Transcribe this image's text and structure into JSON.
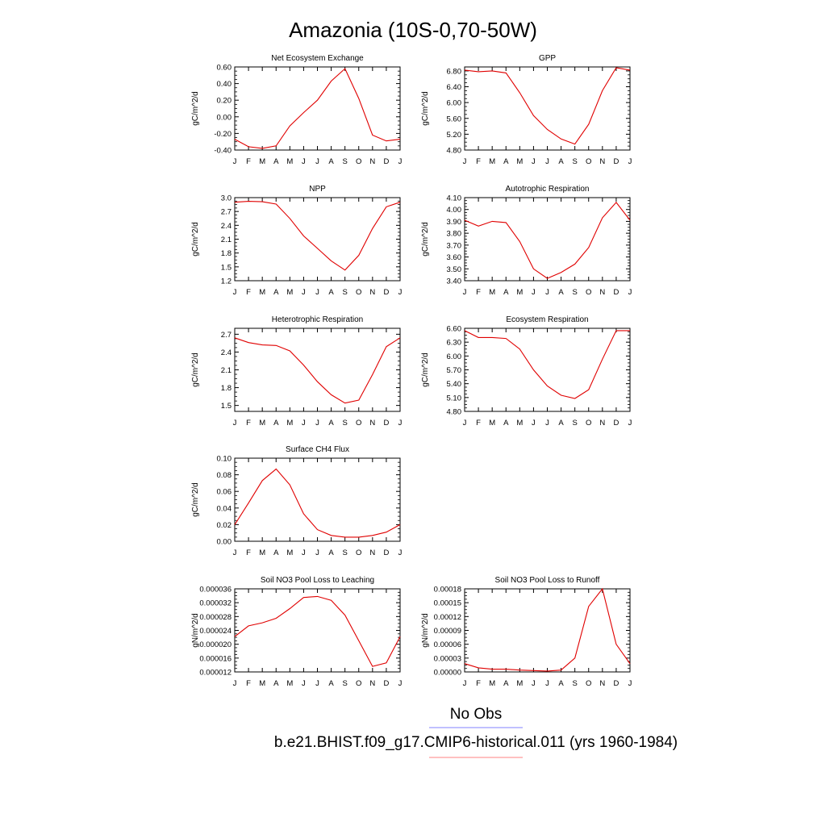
{
  "page": {
    "title": "Amazonia (10S-0,70-50W)",
    "legend": [
      {
        "label": "No Obs",
        "color": "#8080ff"
      },
      {
        "label": "b.e21.BHIST.f09_g17.CMIP6-historical.011 (yrs 1960-1984)",
        "color": "#ff8080"
      }
    ]
  },
  "chart_data": [
    {
      "type": "line",
      "title": "Net Ecosystem Exchange",
      "ylabel": "gC/m^2/d",
      "ylim": [
        -0.4,
        0.6
      ],
      "yticks": [
        "0.60",
        "0.40",
        "0.20",
        "0.00",
        "-0.20",
        "-0.40"
      ],
      "x": [
        "J",
        "F",
        "M",
        "A",
        "M",
        "J",
        "J",
        "A",
        "S",
        "O",
        "N",
        "D",
        "J"
      ],
      "series": [
        {
          "color": "#e00000",
          "values": [
            -0.27,
            -0.36,
            -0.38,
            -0.35,
            -0.11,
            0.05,
            0.2,
            0.43,
            0.58,
            0.22,
            -0.22,
            -0.29,
            -0.27
          ]
        }
      ]
    },
    {
      "type": "line",
      "title": "GPP",
      "ylabel": "gC/m^2/d",
      "ylim": [
        4.8,
        6.9
      ],
      "yticks": [
        "6.80",
        "6.40",
        "6.00",
        "5.60",
        "5.20",
        "4.80"
      ],
      "x": [
        "J",
        "F",
        "M",
        "A",
        "M",
        "J",
        "J",
        "A",
        "S",
        "O",
        "N",
        "D",
        "J"
      ],
      "series": [
        {
          "color": "#e00000",
          "values": [
            6.82,
            6.78,
            6.8,
            6.75,
            6.25,
            5.67,
            5.32,
            5.08,
            4.95,
            5.45,
            6.3,
            6.88,
            6.82
          ]
        }
      ]
    },
    {
      "type": "line",
      "title": "NPP",
      "ylabel": "gC/m^2/d",
      "ylim": [
        1.2,
        3.0
      ],
      "yticks": [
        "3.0",
        "2.7",
        "2.4",
        "2.1",
        "1.8",
        "1.5",
        "1.2"
      ],
      "x": [
        "J",
        "F",
        "M",
        "A",
        "M",
        "J",
        "J",
        "A",
        "S",
        "O",
        "N",
        "D",
        "J"
      ],
      "series": [
        {
          "color": "#e00000",
          "values": [
            2.9,
            2.92,
            2.91,
            2.86,
            2.55,
            2.17,
            1.9,
            1.63,
            1.43,
            1.75,
            2.33,
            2.8,
            2.9
          ]
        }
      ]
    },
    {
      "type": "line",
      "title": "Autotrophic Respiration",
      "ylabel": "gC/m^2/d",
      "ylim": [
        3.4,
        4.1
      ],
      "yticks": [
        "4.10",
        "4.00",
        "3.90",
        "3.80",
        "3.70",
        "3.60",
        "3.50",
        "3.40"
      ],
      "x": [
        "J",
        "F",
        "M",
        "A",
        "M",
        "J",
        "J",
        "A",
        "S",
        "O",
        "N",
        "D",
        "J"
      ],
      "series": [
        {
          "color": "#e00000",
          "values": [
            3.91,
            3.86,
            3.9,
            3.89,
            3.73,
            3.5,
            3.42,
            3.47,
            3.54,
            3.68,
            3.93,
            4.06,
            3.91
          ]
        }
      ]
    },
    {
      "type": "line",
      "title": "Heterotrophic Respiration",
      "ylabel": "gC/m^2/d",
      "ylim": [
        1.4,
        2.8
      ],
      "yticks": [
        "2.7",
        "2.4",
        "2.1",
        "1.8",
        "1.5"
      ],
      "x": [
        "J",
        "F",
        "M",
        "A",
        "M",
        "J",
        "J",
        "A",
        "S",
        "O",
        "N",
        "D",
        "J"
      ],
      "series": [
        {
          "color": "#e00000",
          "values": [
            2.64,
            2.56,
            2.52,
            2.51,
            2.42,
            2.18,
            1.9,
            1.68,
            1.54,
            1.59,
            2.02,
            2.49,
            2.64
          ]
        }
      ]
    },
    {
      "type": "line",
      "title": "Ecosystem Respiration",
      "ylabel": "gC/m^2/d",
      "ylim": [
        4.8,
        6.6
      ],
      "yticks": [
        "6.60",
        "6.30",
        "6.00",
        "5.70",
        "5.40",
        "5.10",
        "4.80"
      ],
      "x": [
        "J",
        "F",
        "M",
        "A",
        "M",
        "J",
        "J",
        "A",
        "S",
        "O",
        "N",
        "D",
        "J"
      ],
      "series": [
        {
          "color": "#e00000",
          "values": [
            6.55,
            6.4,
            6.4,
            6.38,
            6.15,
            5.7,
            5.35,
            5.15,
            5.08,
            5.27,
            5.93,
            6.55,
            6.55
          ]
        }
      ]
    },
    {
      "type": "line",
      "title": "Surface CH4 Flux",
      "ylabel": "gC/m^2/d",
      "ylim": [
        0.0,
        0.1
      ],
      "yticks": [
        "0.10",
        "0.08",
        "0.06",
        "0.04",
        "0.02",
        "0.00"
      ],
      "x": [
        "J",
        "F",
        "M",
        "A",
        "M",
        "J",
        "J",
        "A",
        "S",
        "O",
        "N",
        "D",
        "J"
      ],
      "series": [
        {
          "color": "#e00000",
          "values": [
            0.02,
            0.046,
            0.073,
            0.087,
            0.068,
            0.033,
            0.014,
            0.007,
            0.005,
            0.005,
            0.007,
            0.011,
            0.02
          ]
        }
      ]
    },
    {
      "type": "line",
      "title": "Soil NO3 Pool Loss to Leaching",
      "ylabel": "gN/m^2/d",
      "ylim": [
        1.2e-05,
        3.6e-05
      ],
      "yticks": [
        "0.000036",
        "0.000032",
        "0.000028",
        "0.000024",
        "0.000020",
        "0.000016",
        "0.000012"
      ],
      "x": [
        "J",
        "F",
        "M",
        "A",
        "M",
        "J",
        "J",
        "A",
        "S",
        "O",
        "N",
        "D",
        "J"
      ],
      "series": [
        {
          "color": "#e00000",
          "values": [
            2.22e-05,
            2.53e-05,
            2.62e-05,
            2.75e-05,
            3.03e-05,
            3.35e-05,
            3.38e-05,
            3.27e-05,
            2.84e-05,
            2.1e-05,
            1.36e-05,
            1.46e-05,
            2.22e-05
          ]
        }
      ]
    },
    {
      "type": "line",
      "title": "Soil NO3 Pool Loss to Runoff",
      "ylabel": "gN/m^2/d",
      "ylim": [
        0.0,
        0.00018
      ],
      "yticks": [
        "0.00018",
        "0.00015",
        "0.00012",
        "0.00009",
        "0.00006",
        "0.00003",
        "0.00000"
      ],
      "x": [
        "J",
        "F",
        "M",
        "A",
        "M",
        "J",
        "J",
        "A",
        "S",
        "O",
        "N",
        "D",
        "J"
      ],
      "series": [
        {
          "color": "#e00000",
          "values": [
            1.8e-05,
            9e-06,
            6e-06,
            6e-06,
            4e-06,
            3e-06,
            2e-06,
            4e-06,
            3e-05,
            0.000142,
            0.00018,
            6e-05,
            1.8e-05
          ]
        }
      ]
    }
  ]
}
